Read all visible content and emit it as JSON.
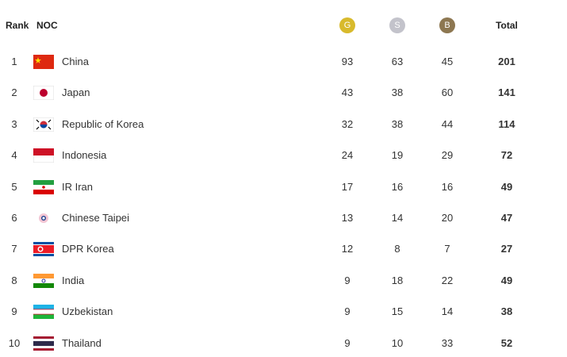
{
  "table": {
    "header": {
      "rank": "Rank",
      "noc": "NOC",
      "gold": "G",
      "silver": "S",
      "bronze": "B",
      "total": "Total"
    },
    "rows": [
      [
        1,
        "China",
        93,
        63,
        45,
        201
      ],
      [
        2,
        "Japan",
        43,
        38,
        60,
        141
      ],
      [
        3,
        "Republic of Korea",
        32,
        38,
        44,
        114
      ],
      [
        4,
        "Indonesia",
        24,
        19,
        29,
        72
      ],
      [
        5,
        "IR Iran",
        17,
        16,
        16,
        49
      ],
      [
        6,
        "Chinese Taipei",
        13,
        14,
        20,
        47
      ],
      [
        7,
        "DPR Korea",
        12,
        8,
        7,
        27
      ],
      [
        8,
        "India",
        9,
        18,
        22,
        49
      ],
      [
        9,
        "Uzbekistan",
        9,
        15,
        14,
        38
      ],
      [
        10,
        "Thailand",
        9,
        10,
        33,
        52
      ]
    ]
  }
}
